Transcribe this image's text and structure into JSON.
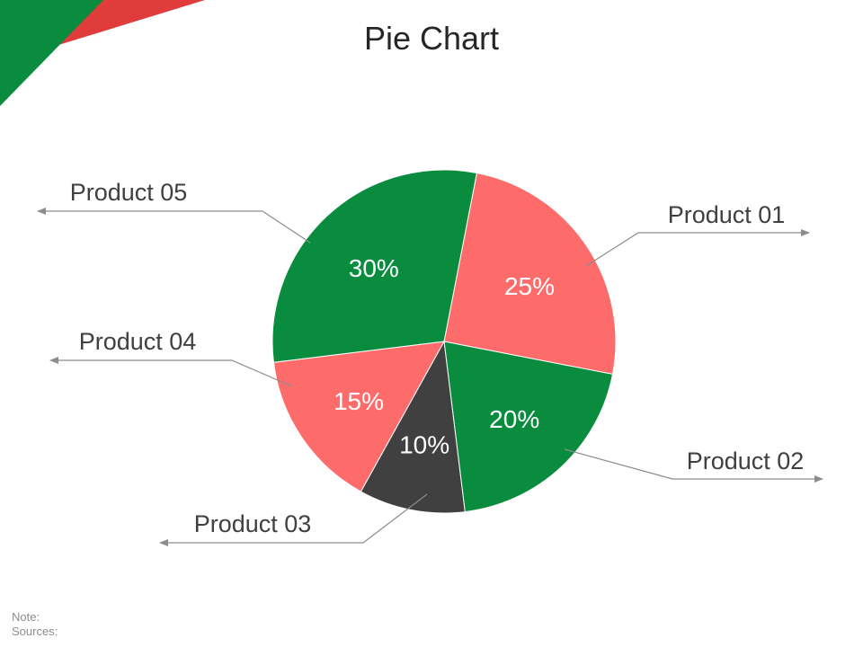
{
  "title": "Pie Chart",
  "colors": {
    "green": "#098C3E",
    "coral": "#FE6B6B",
    "dark": "#404040",
    "red": "#E03C3C",
    "label_text": "#404040",
    "leader_line": "#8C8C8C"
  },
  "chart_data": {
    "type": "pie",
    "title": "Pie Chart",
    "categories": [
      "Product 01",
      "Product 02",
      "Product 03",
      "Product 04",
      "Product 05"
    ],
    "values": [
      25,
      20,
      10,
      15,
      30
    ],
    "value_labels": [
      "25%",
      "20%",
      "10%",
      "15%",
      "30%"
    ],
    "slice_colors": [
      "#FE6B6B",
      "#098C3E",
      "#404040",
      "#FE6B6B",
      "#098C3E"
    ]
  },
  "footer": {
    "note": "Note:",
    "sources": "Sources:"
  }
}
